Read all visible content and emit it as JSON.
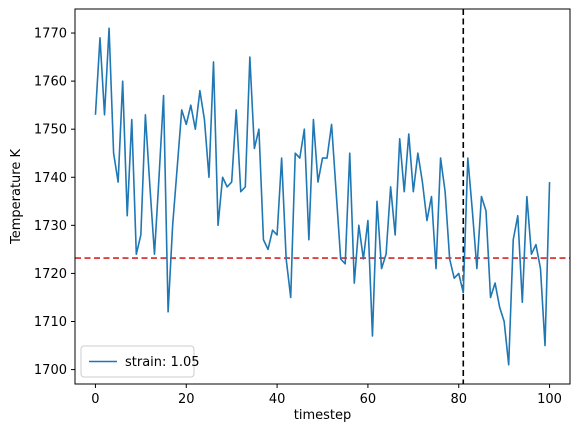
{
  "chart_data": {
    "type": "line",
    "title": "",
    "xlabel": "timestep",
    "ylabel": "Temperature K",
    "xlim": [
      -4.5,
      104.5
    ],
    "ylim": [
      1697,
      1775
    ],
    "xticks": [
      0,
      20,
      40,
      60,
      80,
      100
    ],
    "yticks": [
      1700,
      1710,
      1720,
      1730,
      1740,
      1750,
      1760,
      1770
    ],
    "grid": false,
    "legend": {
      "position": "lower-left"
    },
    "colors": {
      "series": "#1f77b4",
      "hline": "#d62728",
      "vline": "#000000"
    },
    "hline": {
      "y": 1723.2,
      "style": "dashed"
    },
    "vline": {
      "x": 81,
      "style": "dashed"
    },
    "series": [
      {
        "name": "strain: 1.05",
        "x": [
          0,
          1,
          2,
          3,
          4,
          5,
          6,
          7,
          8,
          9,
          10,
          11,
          12,
          13,
          14,
          15,
          16,
          17,
          18,
          19,
          20,
          21,
          22,
          23,
          24,
          25,
          26,
          27,
          28,
          29,
          30,
          31,
          32,
          33,
          34,
          35,
          36,
          37,
          38,
          39,
          40,
          41,
          42,
          43,
          44,
          45,
          46,
          47,
          48,
          49,
          50,
          51,
          52,
          53,
          54,
          55,
          56,
          57,
          58,
          59,
          60,
          61,
          62,
          63,
          64,
          65,
          66,
          67,
          68,
          69,
          70,
          71,
          72,
          73,
          74,
          75,
          76,
          77,
          78,
          79,
          80,
          81,
          82,
          83,
          84,
          85,
          86,
          87,
          88,
          89,
          90,
          91,
          92,
          93,
          94,
          95,
          96,
          97,
          98,
          99,
          100
        ],
        "y": [
          1753,
          1769,
          1753,
          1771,
          1745,
          1739,
          1760,
          1732,
          1752,
          1724,
          1728,
          1753,
          1738,
          1724,
          1740,
          1757,
          1712,
          1730,
          1742,
          1754,
          1751,
          1755,
          1750,
          1758,
          1752,
          1740,
          1764,
          1730,
          1740,
          1738,
          1739,
          1754,
          1737,
          1738,
          1765,
          1746,
          1750,
          1727,
          1725,
          1729,
          1728,
          1744,
          1723,
          1715,
          1745,
          1744,
          1750,
          1727,
          1752,
          1739,
          1744,
          1744,
          1751,
          1737,
          1723,
          1722,
          1745,
          1718,
          1730,
          1723,
          1731,
          1707,
          1735,
          1721,
          1724,
          1738,
          1728,
          1748,
          1737,
          1749,
          1737,
          1745,
          1739,
          1731,
          1736,
          1721,
          1744,
          1737,
          1723,
          1719,
          1720,
          1716,
          1744,
          1733,
          1721,
          1736,
          1733,
          1715,
          1718,
          1713,
          1710,
          1701,
          1727,
          1732,
          1714,
          1736,
          1724,
          1726,
          1721,
          1705,
          1739
        ]
      }
    ]
  }
}
